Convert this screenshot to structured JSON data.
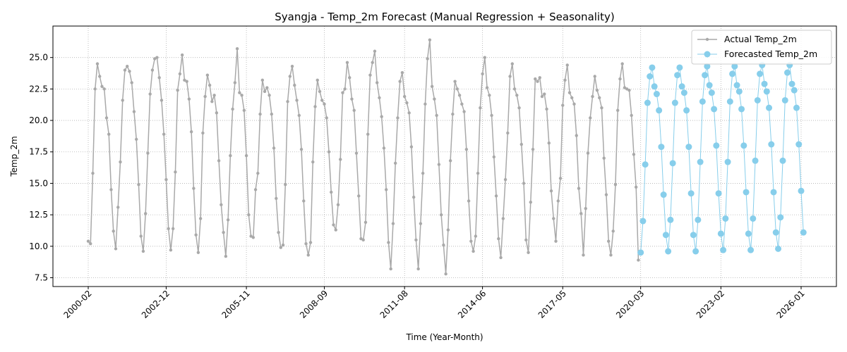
{
  "chart_data": {
    "type": "line",
    "title": "Syangja - Temp_2m Forecast (Manual Regression + Seasonality)",
    "xlabel": "Time (Year-Month)",
    "ylabel": "Temp_2m",
    "x_start": "2000-02",
    "x_end": "2026-01",
    "xticks": [
      "2000-02",
      "2002-12",
      "2005-11",
      "2008-09",
      "2011-08",
      "2014-06",
      "2017-05",
      "2020-03",
      "2023-02",
      "2026-01"
    ],
    "ylim": [
      6.8,
      27.5
    ],
    "yticks": [
      "7.5",
      "10.0",
      "12.5",
      "15.0",
      "17.5",
      "20.0",
      "22.5",
      "25.0"
    ],
    "grid": true,
    "legend_position": "top-right",
    "colors": {
      "actual": "#a9a9a9",
      "forecast": "#87ceeb"
    },
    "series": [
      {
        "name": "Actual Temp_2m",
        "start": "2000-02",
        "values": [
          10.4,
          10.2,
          15.8,
          22.5,
          24.5,
          23.5,
          22.7,
          22.5,
          20.2,
          18.9,
          14.5,
          11.2,
          9.8,
          13.1,
          16.7,
          21.6,
          24.0,
          24.3,
          23.9,
          23.0,
          20.7,
          18.5,
          14.9,
          10.8,
          9.6,
          12.6,
          17.4,
          22.1,
          24.0,
          24.9,
          25.0,
          23.4,
          21.6,
          18.9,
          15.3,
          11.4,
          9.7,
          11.4,
          15.9,
          22.4,
          23.7,
          25.2,
          23.2,
          23.1,
          21.7,
          19.1,
          14.6,
          10.9,
          9.5,
          12.2,
          19.0,
          21.9,
          23.6,
          22.8,
          21.5,
          22.0,
          20.6,
          16.8,
          13.3,
          11.1,
          9.2,
          12.1,
          17.2,
          20.9,
          23.0,
          25.7,
          22.2,
          22.0,
          20.8,
          17.2,
          12.5,
          10.8,
          10.7,
          14.5,
          15.8,
          20.5,
          23.2,
          22.3,
          22.6,
          22.0,
          20.5,
          17.8,
          13.8,
          11.1,
          9.9,
          10.1,
          14.9,
          21.5,
          23.5,
          24.3,
          22.8,
          21.6,
          20.4,
          17.7,
          13.6,
          10.2,
          9.3,
          10.3,
          16.7,
          21.1,
          23.2,
          22.3,
          21.6,
          21.3,
          20.2,
          17.5,
          14.3,
          11.7,
          11.3,
          13.3,
          16.9,
          22.2,
          22.5,
          24.6,
          23.4,
          21.7,
          20.8,
          17.4,
          14.0,
          10.6,
          10.5,
          11.9,
          18.9,
          23.6,
          24.6,
          25.5,
          23.0,
          21.8,
          20.3,
          17.8,
          14.5,
          10.3,
          8.2,
          11.8,
          16.6,
          20.2,
          23.1,
          23.8,
          21.9,
          21.4,
          20.6,
          17.9,
          13.9,
          10.5,
          8.2,
          11.8,
          15.8,
          21.3,
          24.9,
          26.4,
          22.7,
          21.7,
          20.4,
          16.5,
          12.5,
          10.1,
          7.8,
          11.3,
          16.8,
          20.5,
          23.1,
          22.5,
          22.0,
          21.3,
          20.7,
          17.7,
          13.6,
          10.4,
          9.6,
          10.8,
          15.8,
          21.0,
          23.7,
          25.0,
          22.6,
          22.0,
          20.4,
          17.1,
          14.0,
          10.6,
          9.1,
          12.2,
          15.3,
          19.0,
          23.5,
          24.5,
          22.5,
          22.0,
          21.0,
          18.1,
          15.0,
          10.5,
          9.5,
          13.5,
          17.7,
          23.3,
          23.1,
          23.4,
          21.9,
          22.1,
          20.9,
          18.2,
          14.4,
          12.2,
          10.4,
          13.6,
          15.4,
          21.2,
          23.2,
          24.4,
          22.2,
          21.8,
          21.3,
          18.8,
          14.6,
          12.6,
          9.3,
          13.0,
          17.4,
          20.2,
          21.9,
          23.5,
          22.4,
          21.8,
          21.0,
          17.0,
          14.1,
          10.4,
          9.3,
          11.2,
          14.9,
          20.8,
          23.3,
          24.5,
          22.6,
          22.5,
          22.4,
          20.4,
          17.3,
          14.7,
          8.9
        ]
      },
      {
        "name": "Forecasted Temp_2m",
        "start": "2020-03",
        "values": [
          9.5,
          12.0,
          16.5,
          21.4,
          23.5,
          24.2,
          22.7,
          22.1,
          20.8,
          17.9,
          14.1,
          10.9,
          9.6,
          12.1,
          16.6,
          21.4,
          23.6,
          24.2,
          22.7,
          22.2,
          20.8,
          17.9,
          14.2,
          10.9,
          9.6,
          12.1,
          16.7,
          21.5,
          23.6,
          24.3,
          22.8,
          22.2,
          20.9,
          18.0,
          14.2,
          11.0,
          9.7,
          12.2,
          16.7,
          21.5,
          23.7,
          24.3,
          22.8,
          22.3,
          20.9,
          18.0,
          14.3,
          11.0,
          9.7,
          12.2,
          16.8,
          21.6,
          23.7,
          24.4,
          22.9,
          22.3,
          21.0,
          18.1,
          14.3,
          11.1,
          9.8,
          12.3,
          16.8,
          21.6,
          23.8,
          24.4,
          22.9,
          22.4,
          21.0,
          18.1,
          14.4,
          11.1
        ]
      }
    ]
  }
}
